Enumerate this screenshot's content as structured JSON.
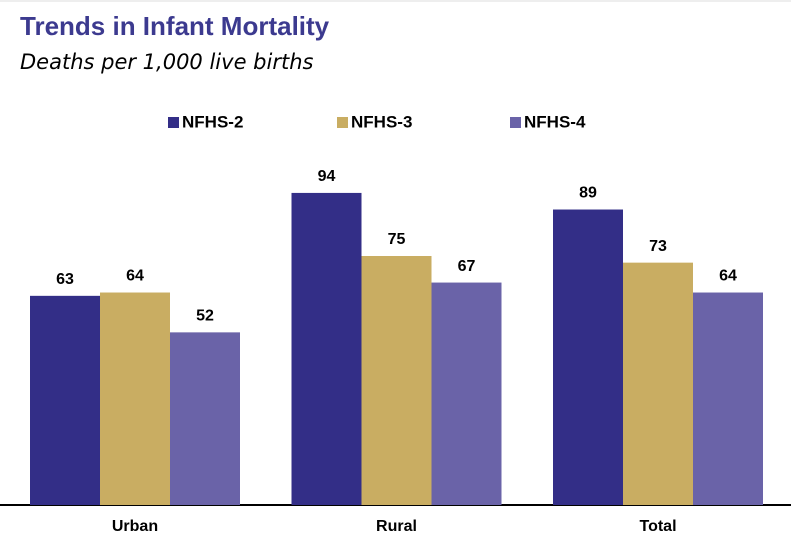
{
  "chart_data": {
    "type": "bar",
    "title": "Trends in Infant Mortality",
    "subtitle": "Deaths per 1,000 live births",
    "categories": [
      "Urban",
      "Rural",
      "Total"
    ],
    "series": [
      {
        "name": "NFHS-2",
        "color": "#332e87",
        "values": [
          63,
          94,
          89
        ]
      },
      {
        "name": "NFHS-3",
        "color": "#c9ad62",
        "values": [
          64,
          75,
          73
        ]
      },
      {
        "name": "NFHS-4",
        "color": "#6a63a8",
        "values": [
          52,
          67,
          64
        ]
      }
    ],
    "legend": "top"
  }
}
